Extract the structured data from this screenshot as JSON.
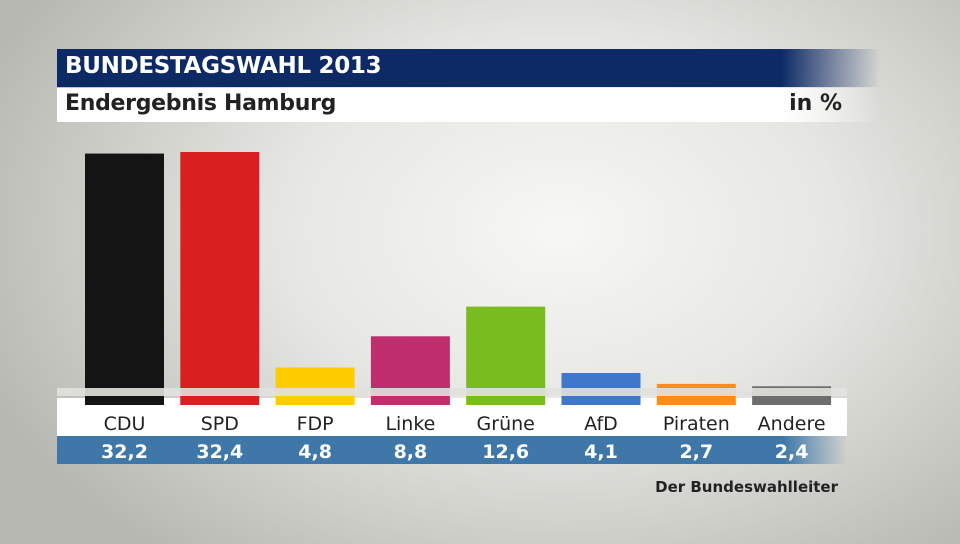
{
  "header": {
    "title": "BUNDESTAGSWAHL 2013",
    "subtitle": "Endergebnis Hamburg",
    "unit": "in %"
  },
  "source": "Der Bundeswahlleiter",
  "chart_data": {
    "type": "bar",
    "title": "BUNDESTAGSWAHL 2013",
    "subtitle": "Endergebnis Hamburg",
    "ylabel": "in %",
    "categories": [
      "CDU",
      "SPD",
      "FDP",
      "Linke",
      "Grüne",
      "AfD",
      "Piraten",
      "Andere"
    ],
    "values": [
      32.2,
      32.4,
      4.8,
      8.8,
      12.6,
      4.1,
      2.7,
      2.4
    ],
    "value_labels": [
      "32,2",
      "32,4",
      "4,8",
      "8,8",
      "12,6",
      "4,1",
      "2,7",
      "2,4"
    ],
    "colors": [
      "#141414",
      "#d91f1f",
      "#ffcc00",
      "#bf2f6e",
      "#78bc1e",
      "#3f78c8",
      "#ff8c1a",
      "#6e6e6e"
    ],
    "ylim": [
      0,
      32.4
    ],
    "grid": false
  }
}
